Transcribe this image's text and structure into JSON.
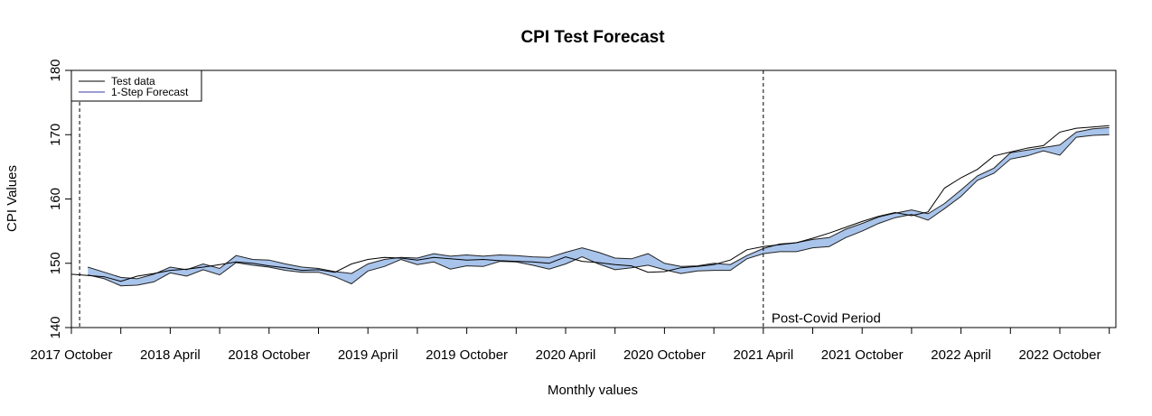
{
  "chart_data": {
    "type": "line",
    "title": "CPI Test Forecast",
    "xlabel": "Monthly values",
    "ylabel": "CPI Values",
    "ylim": [
      140,
      180
    ],
    "yticks": [
      140,
      150,
      160,
      170,
      180
    ],
    "xlim": [
      0,
      63.4
    ],
    "xticks": [
      {
        "label": "2017 October",
        "x": 0
      },
      {
        "label": "2018 April",
        "x": 6
      },
      {
        "label": "2018 October",
        "x": 12
      },
      {
        "label": "2019 April",
        "x": 18
      },
      {
        "label": "2019 October",
        "x": 24
      },
      {
        "label": "2020 April",
        "x": 30
      },
      {
        "label": "2020 October",
        "x": 36
      },
      {
        "label": "2021 April",
        "x": 42
      },
      {
        "label": "2021 October",
        "x": 48
      },
      {
        "label": "2022 April",
        "x": 54
      },
      {
        "label": "2022 October",
        "x": 60
      }
    ],
    "legend": {
      "position": "top-left",
      "entries": [
        {
          "label": "Test data",
          "color": "#000000"
        },
        {
          "label": "1-Step Forecast",
          "color": "#3a3aa6"
        }
      ]
    },
    "vlines": [
      0.5,
      42
    ],
    "annotations": [
      {
        "text": "Post-Covid Period",
        "x": 42.5,
        "y": 141.5
      }
    ],
    "colors": {
      "band_fill": "#a9c4eb",
      "band_stroke": "#222222",
      "test_line": "#000000"
    },
    "series": [
      {
        "name": "Test data",
        "x": [
          0,
          1,
          2,
          3,
          4,
          5,
          6,
          7,
          8,
          9,
          10,
          11,
          12,
          13,
          14,
          15,
          16,
          17,
          18,
          19,
          20,
          21,
          22,
          23,
          24,
          25,
          26,
          27,
          28,
          29,
          30,
          31,
          32,
          33,
          34,
          35,
          36,
          37,
          38,
          39,
          40,
          41,
          42,
          43,
          44,
          45,
          46,
          47,
          48,
          49,
          50,
          51,
          52,
          53,
          54,
          55,
          56,
          57,
          58,
          59,
          60,
          61,
          62,
          63
        ],
        "values": [
          148.3,
          148.1,
          147.9,
          147.2,
          148.0,
          148.4,
          148.9,
          149.1,
          149.4,
          149.8,
          150.2,
          150.0,
          149.6,
          149.3,
          148.9,
          149.0,
          148.6,
          149.9,
          150.6,
          150.9,
          150.8,
          150.5,
          150.9,
          150.7,
          150.5,
          150.6,
          150.4,
          150.3,
          150.2,
          150.0,
          151.0,
          150.3,
          150.1,
          149.8,
          149.6,
          148.6,
          148.7,
          149.3,
          149.5,
          149.8,
          150.5,
          152.1,
          152.6,
          152.9,
          153.2,
          153.9,
          154.7,
          155.6,
          156.5,
          157.3,
          157.9,
          157.4,
          158.0,
          161.7,
          163.3,
          164.6,
          166.7,
          167.3,
          167.9,
          168.3,
          170.4,
          171.0,
          171.2,
          171.4
        ]
      },
      {
        "name": "1-Step Forecast",
        "x": [
          1,
          2,
          3,
          4,
          5,
          6,
          7,
          8,
          9,
          10,
          11,
          12,
          13,
          14,
          15,
          16,
          17,
          18,
          19,
          20,
          21,
          22,
          23,
          24,
          25,
          26,
          27,
          28,
          29,
          30,
          31,
          32,
          33,
          34,
          35,
          36,
          37,
          38,
          39,
          40,
          41,
          42,
          43,
          44,
          45,
          46,
          47,
          48,
          49,
          50,
          51,
          52,
          53,
          54,
          55,
          56,
          57,
          58,
          59,
          60,
          61,
          62,
          63
        ],
        "lower": [
          148.2,
          147.6,
          146.5,
          146.6,
          147.1,
          148.5,
          148.0,
          149.0,
          148.2,
          150.1,
          149.7,
          149.4,
          148.9,
          148.6,
          148.6,
          147.9,
          146.8,
          148.8,
          149.5,
          150.6,
          149.8,
          150.2,
          149.1,
          149.6,
          149.5,
          150.3,
          150.2,
          149.7,
          149.1,
          149.9,
          151.0,
          149.9,
          149.0,
          149.3,
          149.7,
          149.0,
          148.4,
          148.8,
          148.9,
          148.9,
          150.7,
          151.5,
          151.8,
          151.8,
          152.4,
          152.6,
          154.0,
          155.0,
          156.2,
          157.1,
          157.6,
          156.7,
          158.5,
          160.4,
          162.9,
          164.0,
          166.2,
          166.7,
          167.5,
          166.8,
          169.6,
          169.9,
          170.0
        ],
        "upper": [
          149.4,
          148.6,
          147.8,
          147.6,
          148.3,
          149.4,
          149.0,
          149.9,
          149.2,
          151.2,
          150.6,
          150.5,
          149.9,
          149.4,
          149.2,
          148.7,
          148.4,
          149.9,
          150.6,
          150.9,
          150.8,
          151.5,
          151.1,
          151.3,
          151.1,
          151.3,
          151.2,
          151.0,
          150.9,
          151.7,
          152.4,
          151.7,
          150.8,
          150.7,
          151.5,
          150.0,
          149.5,
          149.6,
          150.0,
          149.8,
          151.2,
          152.3,
          153.0,
          153.2,
          153.7,
          154.0,
          155.3,
          156.2,
          157.2,
          157.8,
          158.3,
          157.7,
          159.3,
          161.4,
          163.6,
          164.8,
          167.2,
          167.6,
          168.0,
          168.4,
          170.4,
          170.9,
          171.1
        ]
      }
    ]
  }
}
